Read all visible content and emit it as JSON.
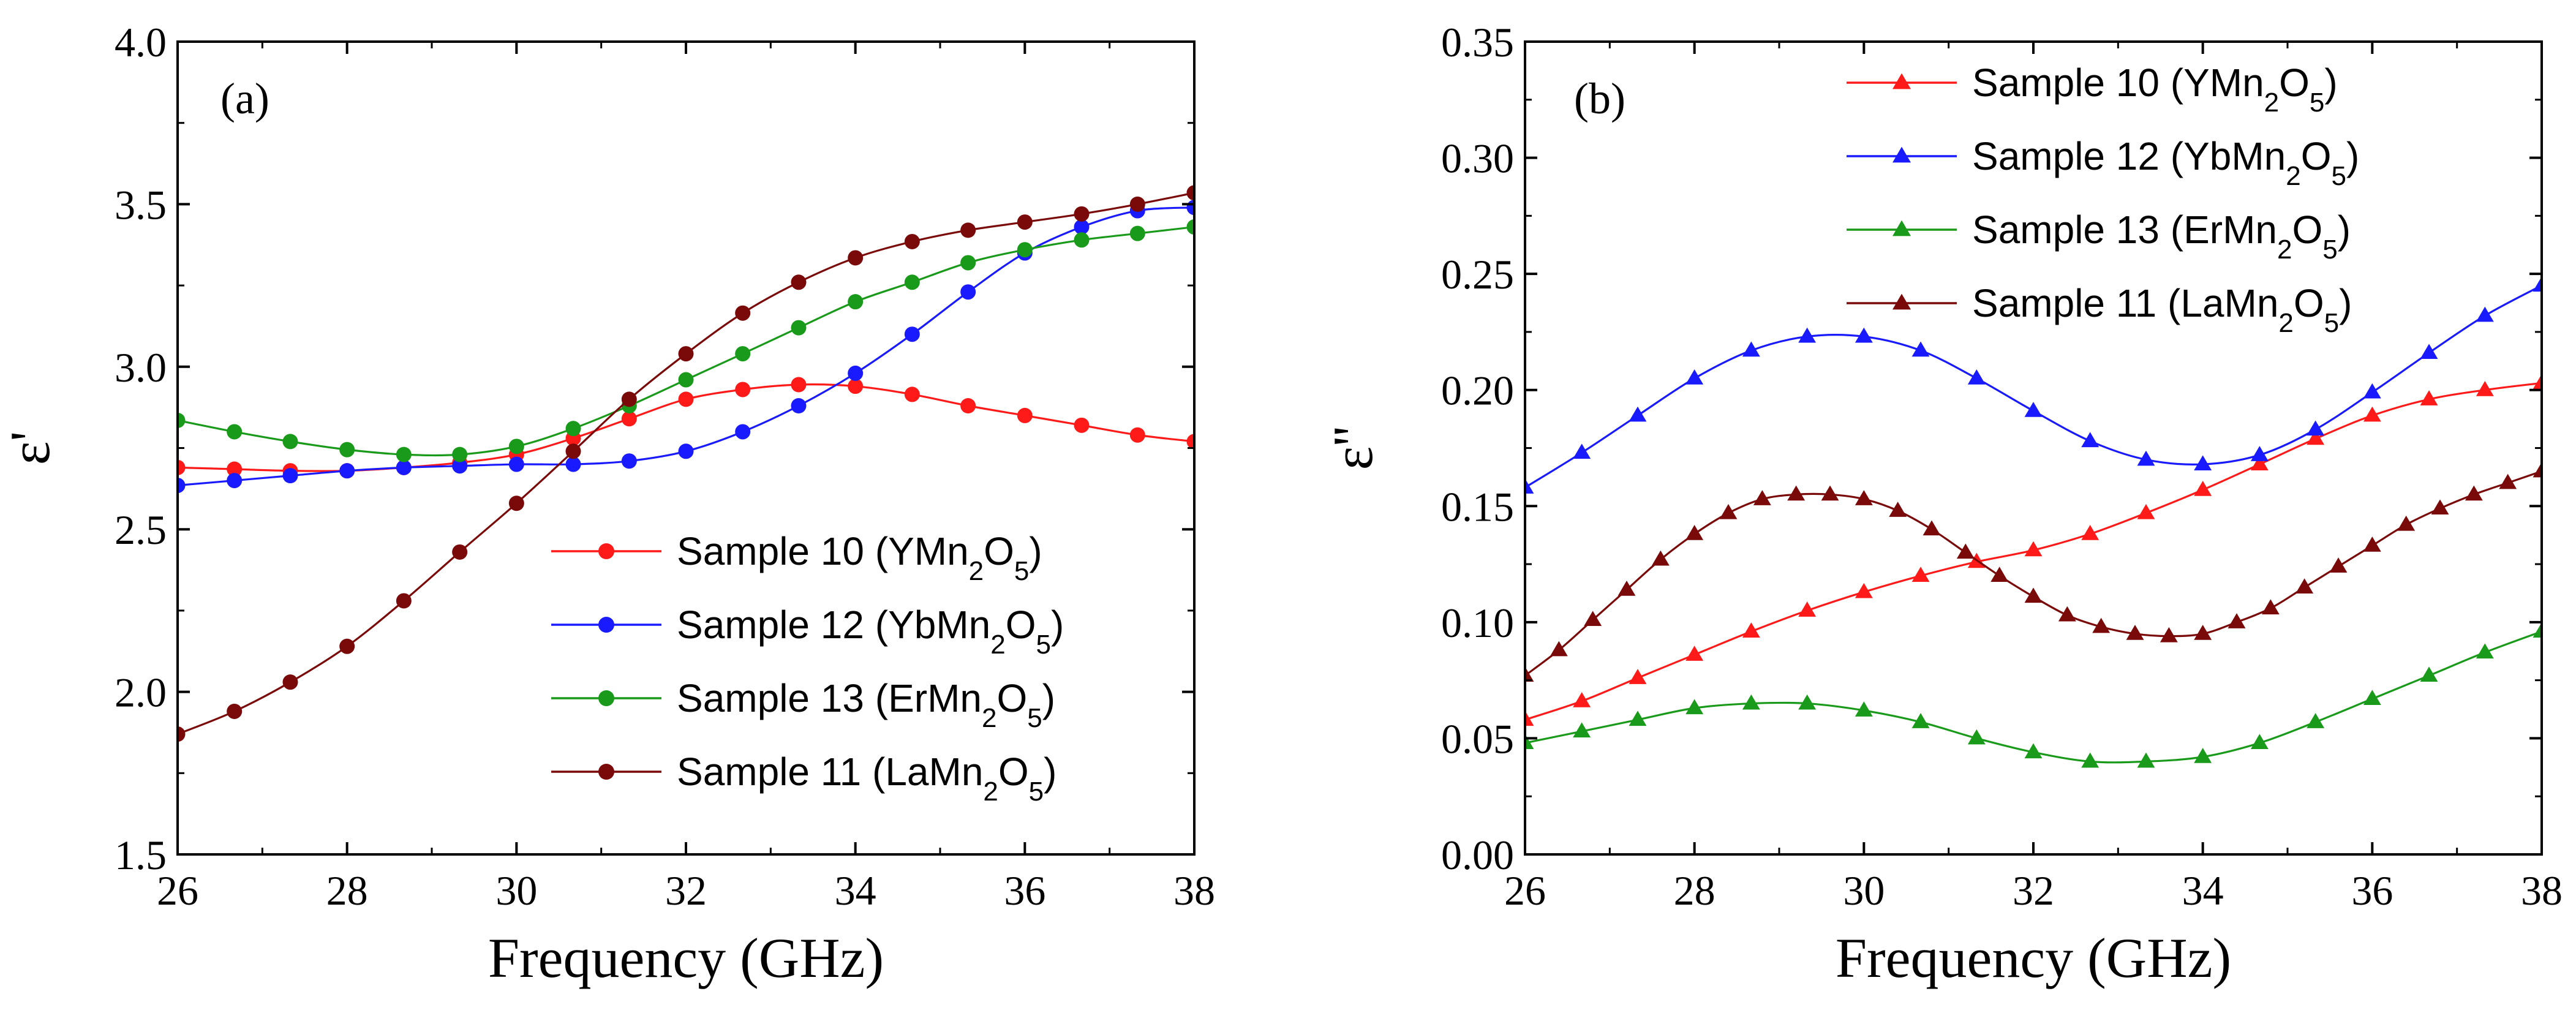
{
  "figure": {
    "description_free": true
  },
  "chart_data": [
    {
      "type": "line",
      "panel_label": "(a)",
      "xlabel": "Frequency (GHz)",
      "ylabel": "ε'",
      "xlim": [
        26,
        38
      ],
      "ylim": [
        1.5,
        4.0
      ],
      "xticks": [
        26,
        28,
        30,
        32,
        34,
        36,
        38
      ],
      "yticks": [
        1.5,
        2.0,
        2.5,
        3.0,
        3.5,
        4.0
      ],
      "xtick_labels": [
        "26",
        "28",
        "30",
        "32",
        "34",
        "36",
        "38"
      ],
      "ytick_labels": [
        "1.5",
        "2.0",
        "2.5",
        "3.0",
        "3.5",
        "4.0"
      ],
      "marker": "circle",
      "legend_position": "bottom-right",
      "series": [
        {
          "name": "Sample 10 (YMn2O5)",
          "label_main": "Sample 10 (YMn",
          "label_sub1": "2",
          "label_mid": "O",
          "label_sub2": "5",
          "label_end": ")",
          "color": "#ff1a1a",
          "x": [
            26.0,
            26.67,
            27.33,
            28.0,
            28.67,
            29.33,
            30.0,
            30.67,
            31.33,
            32.0,
            32.67,
            33.33,
            34.0,
            34.67,
            35.33,
            36.0,
            36.67,
            37.33,
            38.0
          ],
          "y": [
            2.69,
            2.685,
            2.68,
            2.68,
            2.69,
            2.705,
            2.73,
            2.78,
            2.84,
            2.9,
            2.93,
            2.945,
            2.94,
            2.915,
            2.88,
            2.85,
            2.82,
            2.79,
            2.77
          ]
        },
        {
          "name": "Sample 12 (YbMn2O5)",
          "label_main": "Sample 12 (YbMn",
          "label_sub1": "2",
          "label_mid": "O",
          "label_sub2": "5",
          "label_end": ")",
          "color": "#1a1aff",
          "x": [
            26.0,
            26.67,
            27.33,
            28.0,
            28.67,
            29.33,
            30.0,
            30.67,
            31.33,
            32.0,
            32.67,
            33.33,
            34.0,
            34.67,
            35.33,
            36.0,
            36.67,
            37.33,
            38.0
          ],
          "y": [
            2.635,
            2.65,
            2.665,
            2.68,
            2.69,
            2.695,
            2.7,
            2.7,
            2.71,
            2.74,
            2.8,
            2.88,
            2.98,
            3.1,
            3.23,
            3.35,
            3.43,
            3.48,
            3.49
          ]
        },
        {
          "name": "Sample 13 (ErMn2O5)",
          "label_main": "Sample 13 (ErMn",
          "label_sub1": "2",
          "label_mid": "O",
          "label_sub2": "5",
          "label_end": ")",
          "color": "#1a9a1a",
          "x": [
            26.0,
            26.67,
            27.33,
            28.0,
            28.67,
            29.33,
            30.0,
            30.67,
            31.33,
            32.0,
            32.67,
            33.33,
            34.0,
            34.67,
            35.33,
            36.0,
            36.67,
            37.33,
            38.0
          ],
          "y": [
            2.835,
            2.8,
            2.77,
            2.745,
            2.73,
            2.73,
            2.755,
            2.81,
            2.88,
            2.96,
            3.04,
            3.12,
            3.2,
            3.26,
            3.32,
            3.36,
            3.39,
            3.41,
            3.43
          ]
        },
        {
          "name": "Sample 11 (LaMn2O5)",
          "label_main": "Sample 11 (LaMn",
          "label_sub1": "2",
          "label_mid": "O",
          "label_sub2": "5",
          "label_end": ")",
          "color": "#7a0a0a",
          "x": [
            26.0,
            26.67,
            27.33,
            28.0,
            28.67,
            29.33,
            30.0,
            30.67,
            31.33,
            32.0,
            32.67,
            33.33,
            34.0,
            34.67,
            35.33,
            36.0,
            36.67,
            37.33,
            38.0
          ],
          "y": [
            1.87,
            1.94,
            2.03,
            2.14,
            2.28,
            2.43,
            2.58,
            2.74,
            2.9,
            3.04,
            3.165,
            3.26,
            3.335,
            3.385,
            3.42,
            3.445,
            3.47,
            3.5,
            3.535
          ]
        }
      ]
    },
    {
      "type": "line",
      "panel_label": "(b)",
      "xlabel": "Frequency (GHz)",
      "ylabel": "ε''",
      "xlim": [
        26,
        38
      ],
      "ylim": [
        0.0,
        0.35
      ],
      "xticks": [
        26,
        28,
        30,
        32,
        34,
        36,
        38
      ],
      "yticks": [
        0.0,
        0.05,
        0.1,
        0.15,
        0.2,
        0.25,
        0.3,
        0.35
      ],
      "xtick_labels": [
        "26",
        "28",
        "30",
        "32",
        "34",
        "36",
        "38"
      ],
      "ytick_labels": [
        "0.00",
        "0.05",
        "0.10",
        "0.15",
        "0.20",
        "0.25",
        "0.30",
        "0.35"
      ],
      "marker": "triangle",
      "legend_position": "top-center",
      "series": [
        {
          "name": "Sample 10 (YMn2O5)",
          "label_main": "Sample 10 (YMn",
          "label_sub1": "2",
          "label_mid": "O",
          "label_sub2": "5",
          "label_end": ")",
          "color": "#ff1a1a",
          "x": [
            26.0,
            26.67,
            27.33,
            28.0,
            28.67,
            29.33,
            30.0,
            30.67,
            31.33,
            32.0,
            32.67,
            33.33,
            34.0,
            34.67,
            35.33,
            36.0,
            36.67,
            37.33,
            38.0
          ],
          "y": [
            0.058,
            0.066,
            0.076,
            0.086,
            0.096,
            0.105,
            0.113,
            0.12,
            0.126,
            0.131,
            0.138,
            0.147,
            0.157,
            0.168,
            0.179,
            0.189,
            0.196,
            0.2,
            0.203
          ]
        },
        {
          "name": "Sample 12 (YbMn2O5)",
          "label_main": "Sample 12 (YbMn",
          "label_sub1": "2",
          "label_mid": "O",
          "label_sub2": "5",
          "label_end": ")",
          "color": "#1a1aff",
          "x": [
            26.0,
            26.67,
            27.33,
            28.0,
            28.67,
            29.33,
            30.0,
            30.67,
            31.33,
            32.0,
            32.67,
            33.33,
            34.0,
            34.67,
            35.33,
            36.0,
            36.67,
            37.33,
            38.0
          ],
          "y": [
            0.158,
            0.173,
            0.189,
            0.205,
            0.217,
            0.223,
            0.223,
            0.217,
            0.205,
            0.191,
            0.178,
            0.17,
            0.168,
            0.172,
            0.183,
            0.199,
            0.216,
            0.232,
            0.245
          ]
        },
        {
          "name": "Sample 13 (ErMn2O5)",
          "label_main": "Sample 13 (ErMn",
          "label_sub1": "2",
          "label_mid": "O",
          "label_sub2": "5",
          "label_end": ")",
          "color": "#1a9a1a",
          "x": [
            26.0,
            26.67,
            27.33,
            28.0,
            28.67,
            29.33,
            30.0,
            30.67,
            31.33,
            32.0,
            32.67,
            33.33,
            34.0,
            34.67,
            35.33,
            36.0,
            36.67,
            37.33,
            38.0
          ],
          "y": [
            0.048,
            0.053,
            0.058,
            0.063,
            0.065,
            0.065,
            0.062,
            0.057,
            0.05,
            0.044,
            0.04,
            0.04,
            0.042,
            0.048,
            0.057,
            0.067,
            0.077,
            0.087,
            0.096
          ]
        },
        {
          "name": "Sample 11 (LaMn2O5)",
          "label_main": "Sample 11 (LaMn",
          "label_sub1": "2",
          "label_mid": "O",
          "label_sub2": "5",
          "label_end": ")",
          "color": "#7a0a0a",
          "x": [
            26.0,
            26.4,
            26.8,
            27.2,
            27.6,
            28.0,
            28.4,
            28.8,
            29.2,
            29.6,
            30.0,
            30.4,
            30.8,
            31.2,
            31.6,
            32.0,
            32.4,
            32.8,
            33.2,
            33.6,
            34.0,
            34.4,
            34.8,
            35.2,
            35.6,
            36.0,
            36.4,
            36.8,
            37.2,
            37.6,
            38.0
          ],
          "y": [
            0.077,
            0.088,
            0.101,
            0.114,
            0.127,
            0.138,
            0.147,
            0.153,
            0.155,
            0.155,
            0.153,
            0.148,
            0.14,
            0.13,
            0.12,
            0.111,
            0.103,
            0.098,
            0.095,
            0.094,
            0.095,
            0.1,
            0.106,
            0.115,
            0.124,
            0.133,
            0.142,
            0.149,
            0.155,
            0.16,
            0.165
          ]
        }
      ]
    }
  ]
}
